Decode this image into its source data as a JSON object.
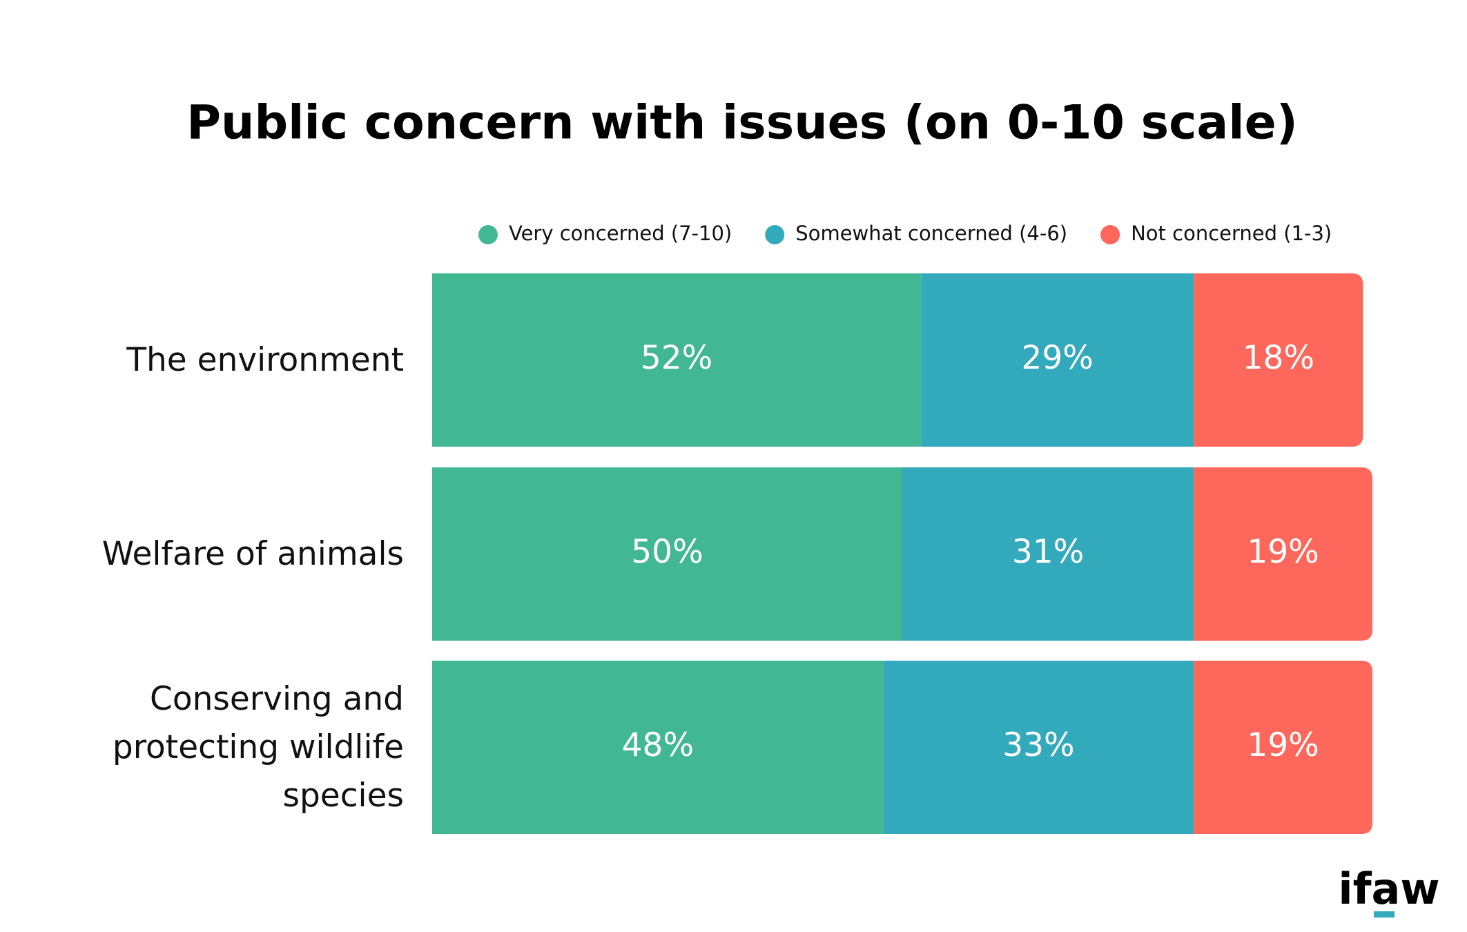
{
  "chart_data": {
    "type": "stacked-bar-horizontal",
    "title": "Public concern with issues (on 0-10 scale)",
    "categories": [
      "The environment",
      "Welfare of animals",
      "Conserving and protecting wildlife species"
    ],
    "series": [
      {
        "name": "Very concerned (7-10)",
        "color": "#41b891",
        "values": [
          52,
          50,
          48
        ],
        "value_labels": [
          "52%",
          "50%",
          "48%"
        ]
      },
      {
        "name": "Somewhat concerned (4-6)",
        "color": "#33a9bc",
        "values": [
          29,
          31,
          33
        ],
        "value_labels": [
          "29%",
          "31%",
          "33%"
        ]
      },
      {
        "name": "Not concerned (1-3)",
        "color": "#fe675b",
        "values": [
          18,
          19,
          19
        ],
        "value_labels": [
          "18%",
          "19%",
          "19%"
        ]
      }
    ],
    "xlim": [
      0,
      100
    ],
    "legend": "top",
    "logo": "ifaw"
  }
}
